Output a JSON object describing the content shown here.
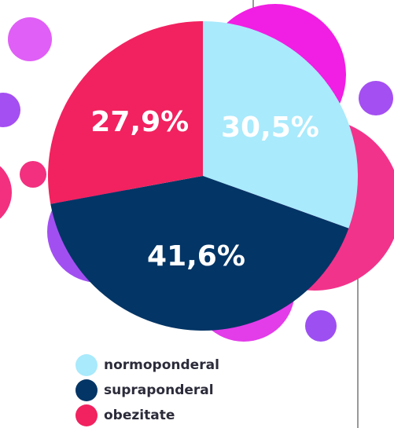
{
  "chart_data": {
    "type": "pie",
    "categories": [
      "normoponderal",
      "supraponderal",
      "obezitate"
    ],
    "values": [
      30.5,
      41.6,
      27.9
    ],
    "value_labels": [
      "30,5%",
      "41,6%",
      "27,9%"
    ],
    "colors": [
      "#a9eafc",
      "#033566",
      "#f1225f"
    ],
    "label_colors": [
      "#ffffff",
      "#ffffff",
      "#ffffff"
    ]
  }
}
